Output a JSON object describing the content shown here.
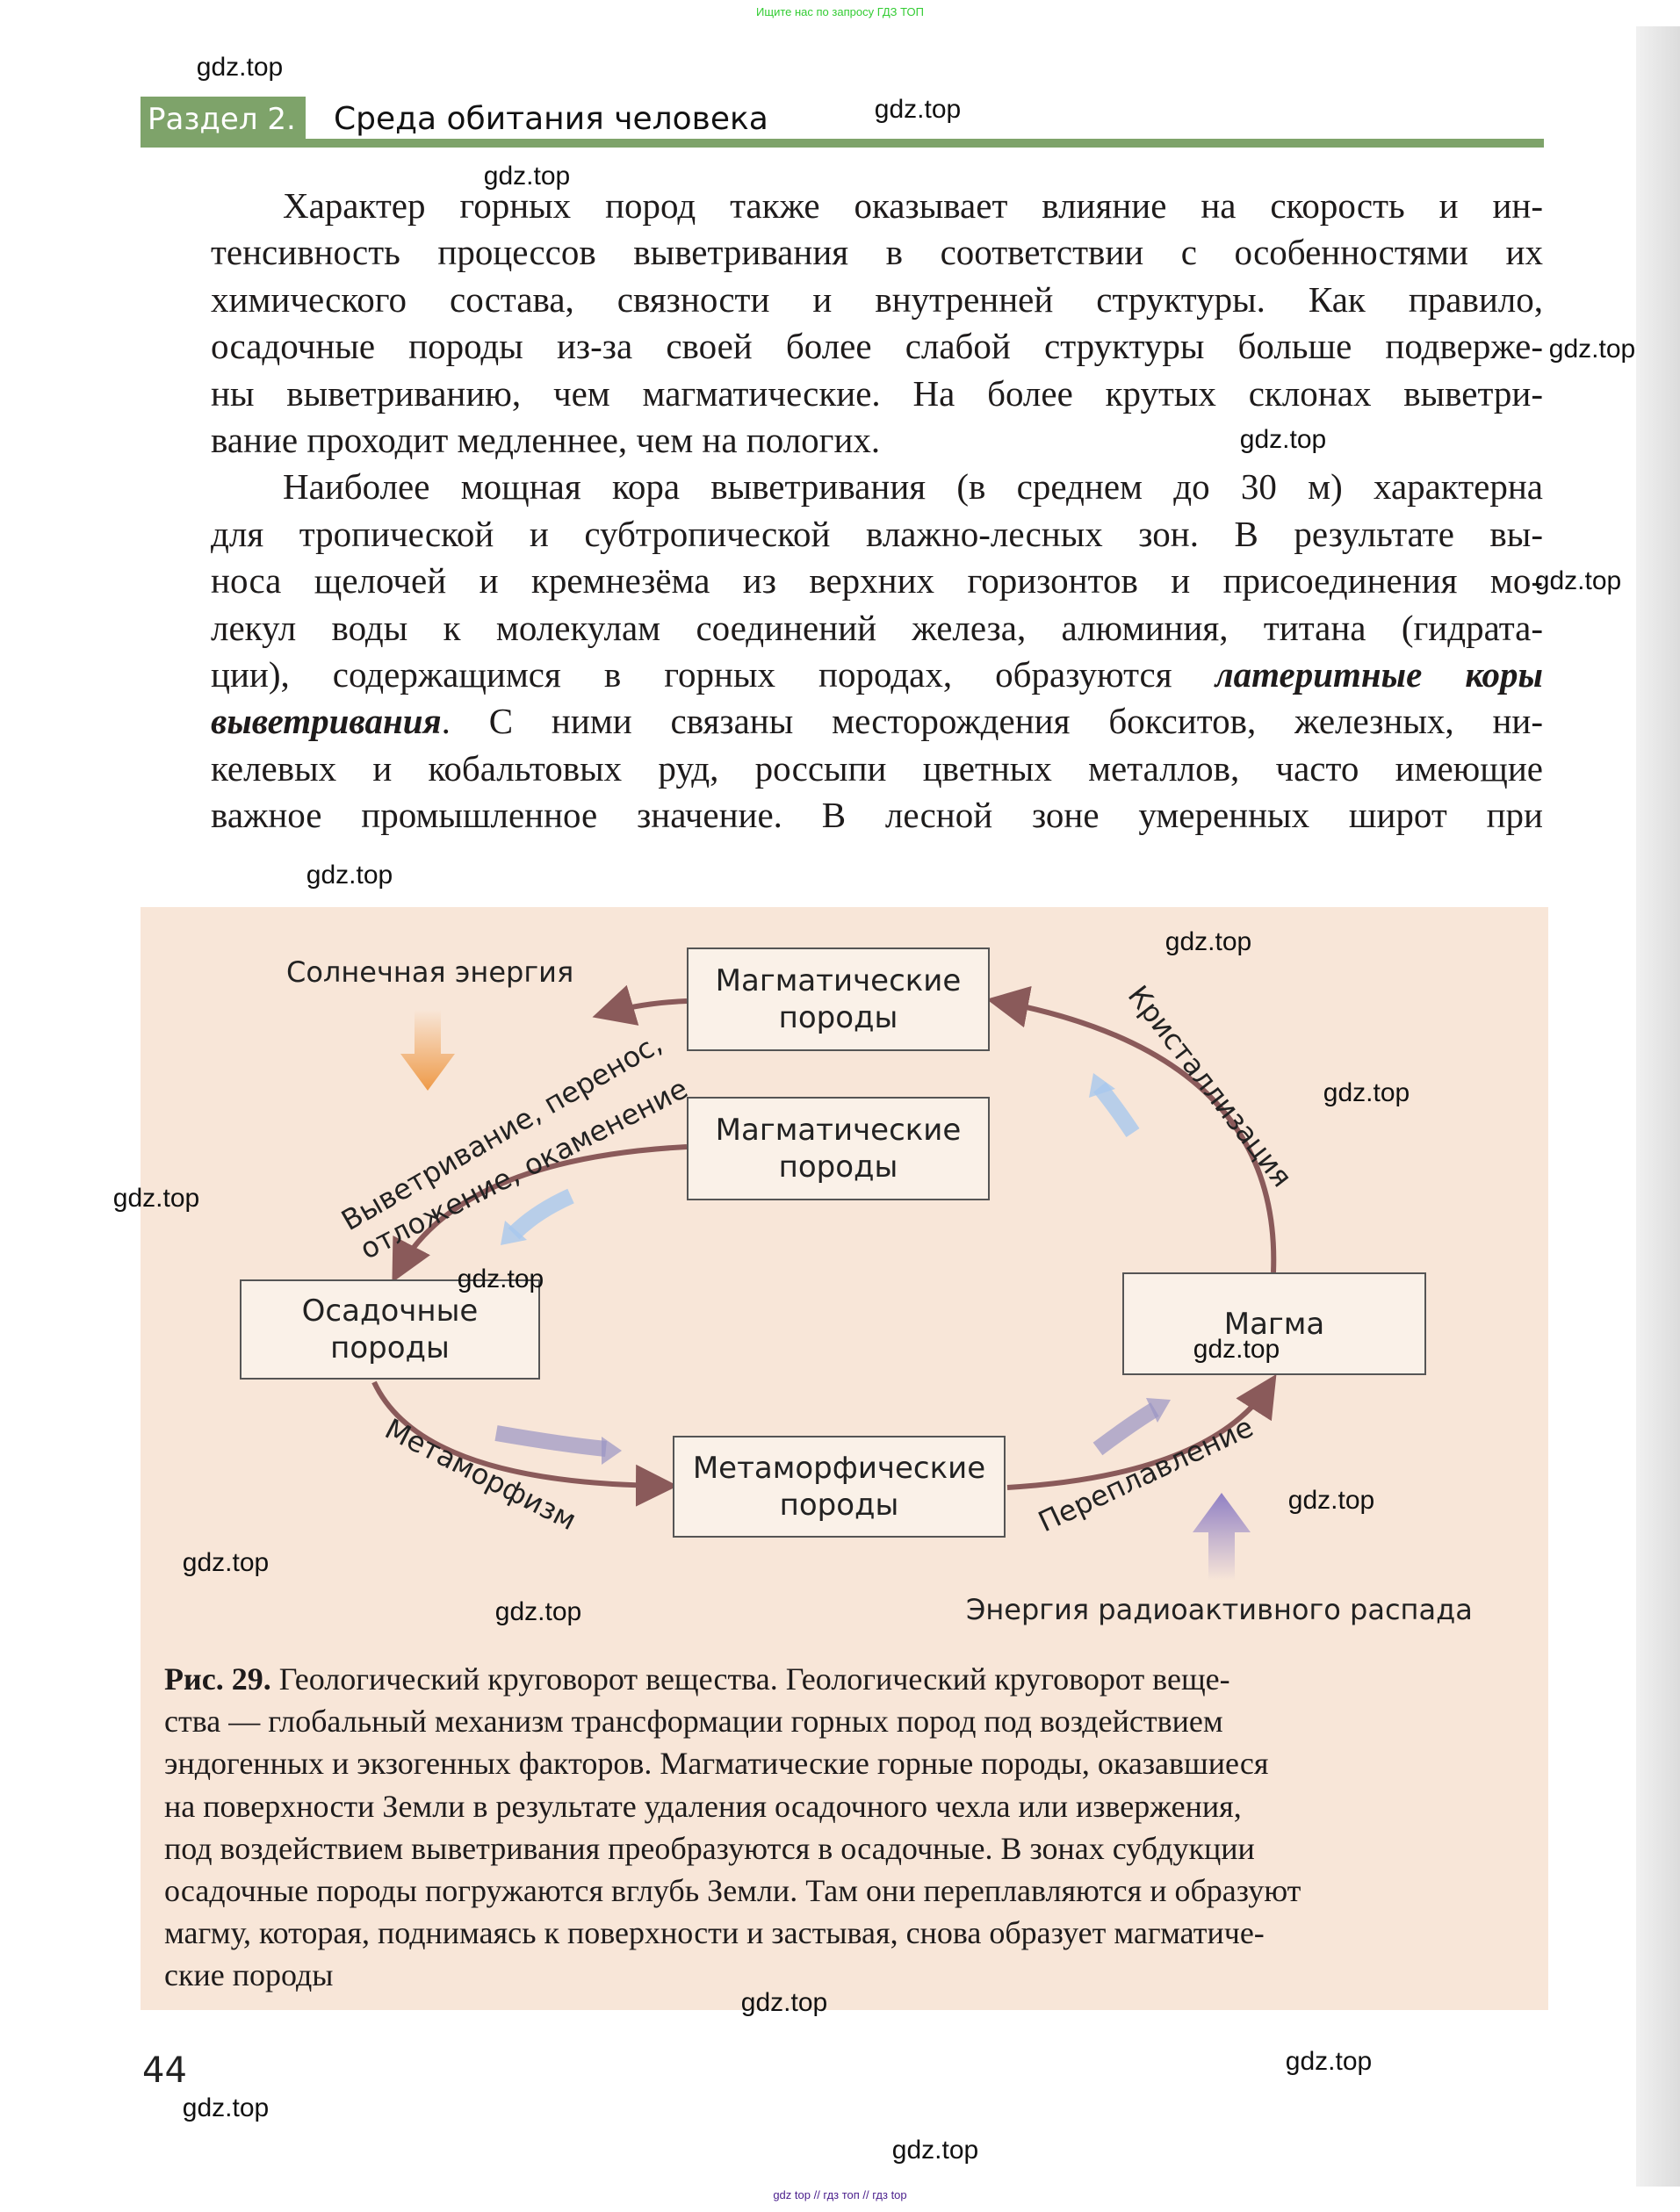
{
  "banner_top": "Ищите нас по запросу ГДЗ ТОП",
  "banner_bottom": "gdz top  //  гдз топ  //  гдз top",
  "header": {
    "section": "Раздел 2.",
    "title": "Среда обитания человека"
  },
  "colors": {
    "section_green": "#7ea36a",
    "figure_bg": "#f8e6d8",
    "arrow": "#8a5a5a",
    "solar_arrow": "#f0a050",
    "blue_arrow": "#a8c8ee",
    "purple_arrow": "#9a8ac8"
  },
  "body_lines": [
    {
      "cls": "indent",
      "parts": [
        {
          "t": "Характер горных пород также оказывает влияние на скорость и ин-"
        }
      ]
    },
    {
      "parts": [
        {
          "t": "тенсивность процессов выветривания в соответствии с особенностями их"
        }
      ]
    },
    {
      "parts": [
        {
          "t": "химического состава, связности и внутренней структуры. Как правило,"
        }
      ]
    },
    {
      "parts": [
        {
          "t": "осадочные породы из-за своей более слабой структуры больше подверже-"
        }
      ]
    },
    {
      "parts": [
        {
          "t": "ны выветриванию, чем магматические. На более крутых склонах выветри-"
        }
      ]
    },
    {
      "cls": "last",
      "parts": [
        {
          "t": "вание проходит медленнее, чем на пологих."
        }
      ]
    },
    {
      "cls": "indent",
      "parts": [
        {
          "t": "Наиболее мощная кора выветривания (в среднем до 30 м) характерна"
        }
      ]
    },
    {
      "parts": [
        {
          "t": "для тропической и субтропической влажно-лесных зон. В результате вы-"
        }
      ]
    },
    {
      "parts": [
        {
          "t": "носа щелочей и кремнезёма из верхних горизонтов и присоединения мо-"
        }
      ]
    },
    {
      "parts": [
        {
          "t": "лекул воды к молекулам соединений железа, алюминия, титана (гидрата-"
        }
      ]
    },
    {
      "parts": [
        {
          "t": "ции), содержащимся в горных породах, образуются "
        },
        {
          "t": "латеритные коры",
          "i": true
        }
      ]
    },
    {
      "parts": [
        {
          "t": "выветривания",
          "i": true
        },
        {
          "t": ". С ними связаны месторождения бокситов, железных, ни-"
        }
      ]
    },
    {
      "parts": [
        {
          "t": "келевых и кобальтовых руд, россыпи цветных металлов, часто имеющие"
        }
      ]
    },
    {
      "parts": [
        {
          "t": "важное промышленное значение. В лесной зоне умеренных широт при"
        }
      ]
    }
  ],
  "diagram": {
    "boxes": {
      "magmatic_1": "Магматические породы",
      "magmatic_2": "Магматические породы",
      "sedimentary": "Осадочные породы",
      "magma": "Магма",
      "metamorphic": "Метаморфические породы"
    },
    "labels": {
      "solar": "Солнечная энергия",
      "weathering_1": "Выветривание, перенос,",
      "weathering_2": "отложение, окаменение",
      "crystallization": "Кристаллизация",
      "metamorphism": "Метаморфизм",
      "remelting": "Переплавление",
      "radioactive": "Энергия радиоактивного распада"
    }
  },
  "caption_lines": [
    {
      "parts": [
        {
          "t": "Рис. 29.",
          "b": true
        },
        {
          "t": " Геологический круговорот вещества. Геологический круговорот веще-"
        }
      ]
    },
    {
      "parts": [
        {
          "t": "ства — глобальный механизм трансформации горных пород под воздействием"
        }
      ]
    },
    {
      "parts": [
        {
          "t": "эндогенных и экзогенных факторов. Магматические горные породы, оказавшиеся"
        }
      ]
    },
    {
      "parts": [
        {
          "t": "на поверхности Земли в результате удаления осадочного чехла или извержения,"
        }
      ]
    },
    {
      "parts": [
        {
          "t": "под воздействием выветривания преобразуются в осадочные. В зонах субдукции"
        }
      ]
    },
    {
      "parts": [
        {
          "t": "осадочные породы погружаются вглубь Земли. Там они переплавляются и образуют"
        }
      ]
    },
    {
      "parts": [
        {
          "t": "магму, которая, поднимаясь к поверхности и застывая, снова образует магматиче-"
        }
      ]
    },
    {
      "parts": [
        {
          "t": "ские породы"
        }
      ]
    }
  ],
  "page_number": "44",
  "watermark": "gdz.top"
}
